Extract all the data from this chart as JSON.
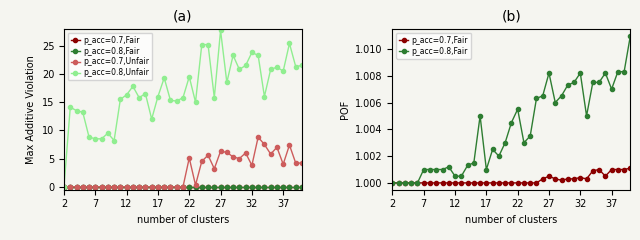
{
  "x": [
    2,
    3,
    4,
    5,
    6,
    7,
    8,
    9,
    10,
    11,
    12,
    13,
    14,
    15,
    16,
    17,
    18,
    19,
    20,
    21,
    22,
    23,
    24,
    25,
    26,
    27,
    28,
    29,
    30,
    31,
    32,
    33,
    34,
    35,
    36,
    37,
    38,
    39,
    40
  ],
  "a_07_fair": [
    0,
    0,
    0,
    0,
    0,
    0,
    0,
    0,
    0,
    0,
    0,
    0,
    0,
    0,
    0,
    0,
    0,
    0,
    0,
    0,
    0,
    0,
    0,
    0,
    0,
    0,
    0,
    0,
    0,
    0,
    0,
    0,
    0,
    0,
    0,
    0,
    0,
    0,
    0
  ],
  "a_08_fair": [
    0,
    0,
    0,
    0,
    0,
    0,
    0,
    0,
    0,
    0,
    0,
    0,
    0,
    0,
    0,
    0,
    0,
    0,
    0,
    0,
    0,
    0,
    0,
    0,
    0,
    0,
    0,
    0,
    0,
    0,
    0,
    0,
    0,
    0,
    0,
    0,
    0,
    0,
    0
  ],
  "a_07_unfair": [
    0,
    0,
    0,
    0,
    0,
    0,
    0,
    0,
    0,
    0,
    0,
    0,
    0,
    0,
    0,
    0,
    0,
    0,
    0,
    0,
    5.1,
    0.3,
    4.5,
    5.6,
    3.2,
    6.3,
    6.1,
    5.3,
    5.0,
    6.0,
    3.8,
    8.8,
    7.5,
    5.8,
    7.0,
    4.0,
    7.4,
    4.2,
    4.2
  ],
  "a_08_unfair": [
    0,
    14.1,
    13.5,
    13.2,
    8.8,
    8.5,
    8.5,
    9.5,
    8.2,
    15.5,
    16.3,
    17.8,
    15.8,
    16.5,
    12.0,
    16.0,
    19.3,
    15.3,
    15.2,
    15.8,
    19.5,
    15.0,
    25.2,
    25.2,
    15.8,
    27.7,
    18.5,
    23.3,
    20.8,
    21.5,
    23.8,
    23.3,
    16.0,
    20.8,
    21.2,
    20.5,
    25.4,
    21.3,
    21.5
  ],
  "b_07_fair": [
    1.0,
    1.0,
    1.0,
    1.0,
    1.0,
    1.0,
    1.0,
    1.0,
    1.0,
    1.0,
    1.0,
    1.0,
    1.0,
    1.0,
    1.0,
    1.0,
    1.0,
    1.0,
    1.0,
    1.0,
    1.0,
    1.0,
    1.0,
    1.0,
    1.0003,
    1.0005,
    1.0003,
    1.0002,
    1.0003,
    1.0003,
    1.0004,
    1.0003,
    1.0009,
    1.001,
    1.0005,
    1.001,
    1.001,
    1.001,
    1.0011
  ],
  "b_08_fair": [
    1.0,
    1.0,
    1.0,
    1.0,
    1.0,
    1.001,
    1.001,
    1.001,
    1.001,
    1.0012,
    1.0005,
    1.0005,
    1.0013,
    1.0015,
    1.005,
    1.001,
    1.0025,
    1.002,
    1.003,
    1.0045,
    1.0055,
    1.003,
    1.0035,
    1.0063,
    1.0065,
    1.0082,
    1.006,
    1.0065,
    1.0073,
    1.0075,
    1.0082,
    1.005,
    1.0075,
    1.0075,
    1.0082,
    1.007,
    1.0083,
    1.0083,
    1.011
  ],
  "title_a": "(a)",
  "title_b": "(b)",
  "ylabel_a": "Max Additive Violation",
  "ylabel_b": "POF",
  "xlabel": "number of clusters",
  "ylim_a": [
    -0.5,
    28
  ],
  "ylim_b": [
    0.9995,
    1.0115
  ],
  "yticks_a": [
    0,
    5,
    10,
    15,
    20,
    25
  ],
  "yticks_b": [
    1.0,
    1.002,
    1.004,
    1.006,
    1.008,
    1.01
  ],
  "color_07_fair": "#8B0000",
  "color_08_fair": "#2E7D32",
  "color_07_unfair": "#CD5C5C",
  "color_08_unfair": "#90EE90",
  "legend_a": [
    "p_acc=0.7,Fair",
    "p_acc=0.8,Fair",
    "p_acc=0.7,Unfair",
    "p_acc=0.8,Unfair"
  ],
  "legend_b": [
    "p_acc=0.7,Fair",
    "p_acc=0.8,Fair"
  ],
  "markersize": 3,
  "linewidth": 1.0,
  "bg_color": "#F5F5F0",
  "fig_bg_color": "#F5F5F0"
}
